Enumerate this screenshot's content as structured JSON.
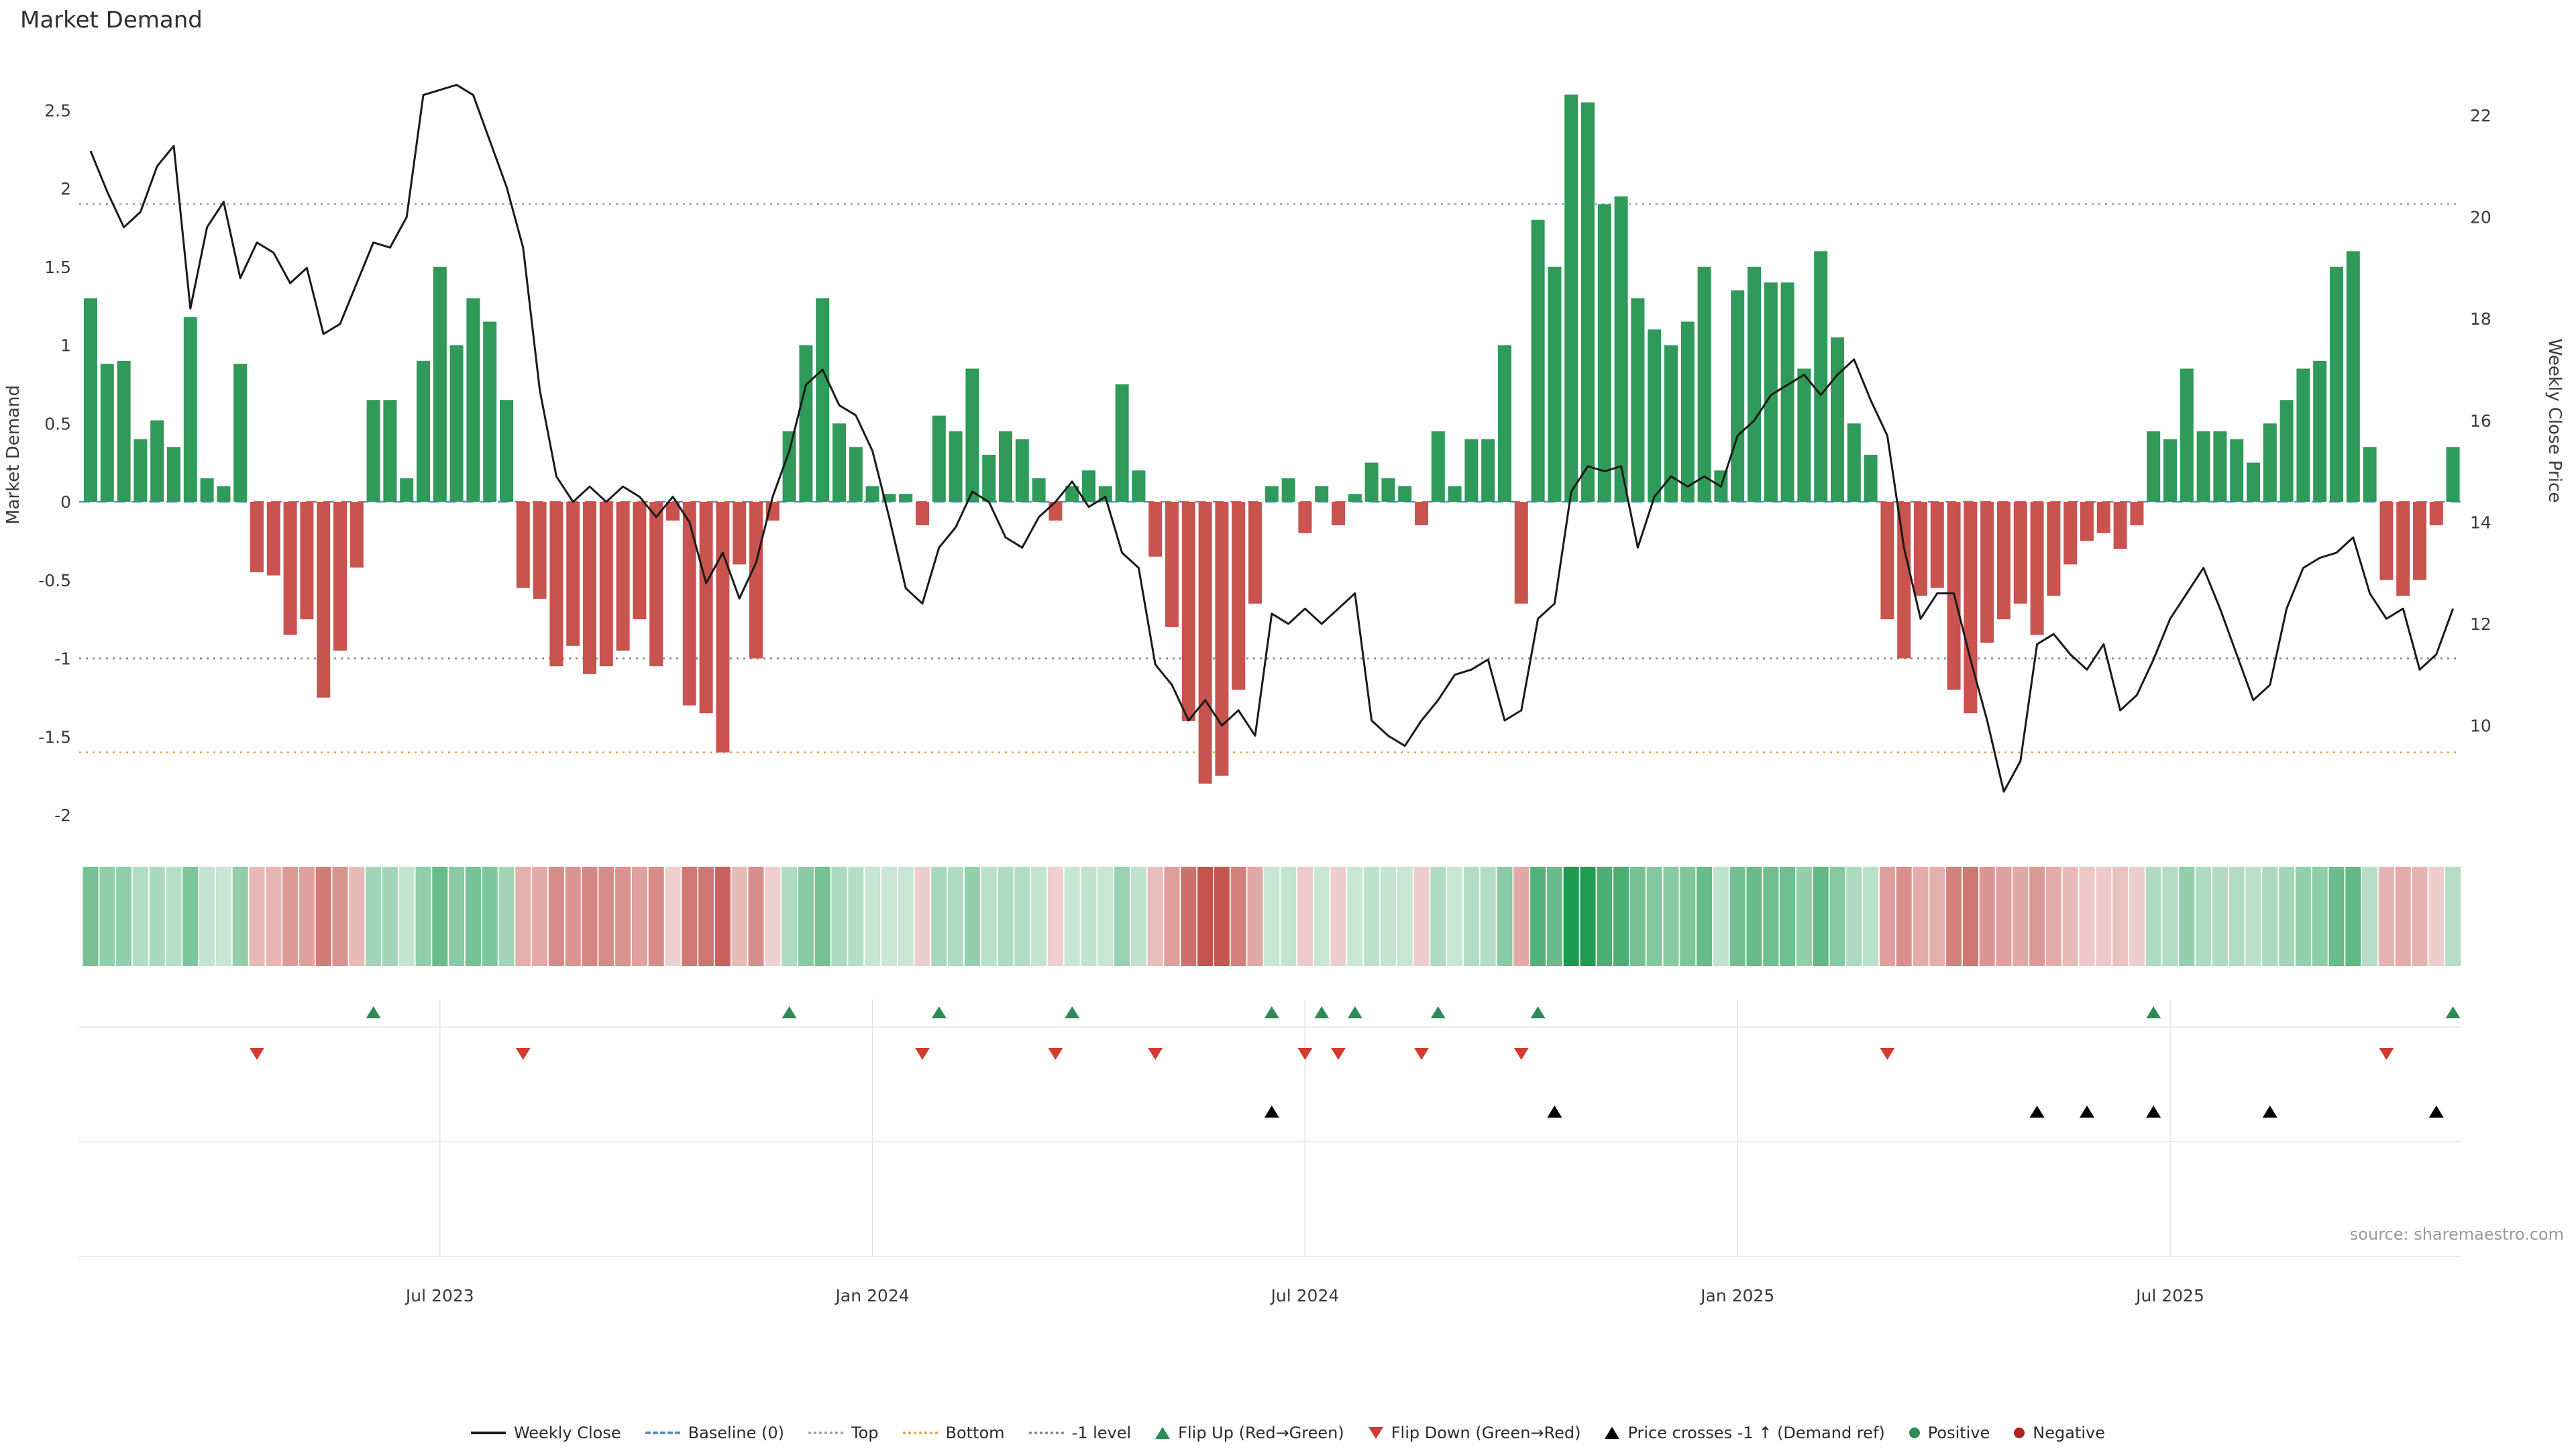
{
  "title": "Market Demand",
  "source": "source: sharemaestro.com",
  "axes": {
    "left_label": "Market Demand",
    "right_label": "Weekly Close Price",
    "left_ticks": [
      2.5,
      2,
      1.5,
      1,
      0.5,
      0,
      -0.5,
      -1,
      -1.5,
      -2
    ],
    "right_ticks": [
      22,
      20,
      18,
      16,
      14,
      12,
      10
    ]
  },
  "chart_data": {
    "type": "bar+line dual-axis with heatmap strip and event markers",
    "x_unit": "week",
    "n_points": 143,
    "x_tick_labels": [
      "Jul 2023",
      "Jan 2024",
      "Jul 2024",
      "Jan 2025",
      "Jul 2025"
    ],
    "x_tick_indices": [
      21,
      47,
      73,
      99,
      125
    ],
    "demand_ylim": [
      -2.1,
      2.75
    ],
    "price_ylim": [
      7.9,
      22.9
    ],
    "reference_levels": {
      "baseline": 0,
      "top": 1.9,
      "bottom": -1.6,
      "minus1": -1
    },
    "demand": [
      1.3,
      0.88,
      0.9,
      0.4,
      0.52,
      0.35,
      1.18,
      0.15,
      0.1,
      0.88,
      -0.45,
      -0.47,
      -0.85,
      -0.75,
      -1.25,
      -0.95,
      -0.42,
      0.65,
      0.65,
      0.15,
      0.9,
      1.5,
      1.0,
      1.3,
      1.15,
      0.65,
      -0.55,
      -0.62,
      -1.05,
      -0.92,
      -1.1,
      -1.05,
      -0.95,
      -0.75,
      -1.05,
      -0.12,
      -1.3,
      -1.35,
      -1.6,
      -0.4,
      -1.0,
      -0.12,
      0.45,
      1.0,
      1.3,
      0.5,
      0.35,
      0.1,
      0.05,
      0.05,
      -0.15,
      0.55,
      0.45,
      0.85,
      0.3,
      0.45,
      0.4,
      0.15,
      -0.12,
      0.1,
      0.2,
      0.1,
      0.75,
      0.2,
      -0.35,
      -0.8,
      -1.4,
      -1.8,
      -1.75,
      -1.2,
      -0.65,
      0.1,
      0.15,
      -0.2,
      0.1,
      -0.15,
      0.05,
      0.25,
      0.15,
      0.1,
      -0.15,
      0.45,
      0.1,
      0.4,
      0.4,
      1.0,
      -0.65,
      1.8,
      1.5,
      2.6,
      2.55,
      1.9,
      1.95,
      1.3,
      1.1,
      1.0,
      1.15,
      1.5,
      0.2,
      1.35,
      1.5,
      1.4,
      1.4,
      0.85,
      1.6,
      1.05,
      0.5,
      0.3,
      -0.75,
      -1.0,
      -0.6,
      -0.55,
      -1.2,
      -1.35,
      -0.9,
      -0.75,
      -0.65,
      -0.85,
      -0.6,
      -0.4,
      -0.25,
      -0.2,
      -0.3,
      -0.15,
      0.45,
      0.4,
      0.85,
      0.45,
      0.45,
      0.4,
      0.25,
      0.5,
      0.65,
      0.85,
      0.9,
      1.5,
      1.6,
      0.35,
      -0.5,
      -0.6,
      -0.5,
      -0.15,
      0.35
    ],
    "price": [
      21.3,
      20.5,
      19.8,
      20.1,
      21.0,
      21.4,
      18.2,
      19.8,
      20.3,
      18.8,
      19.5,
      19.3,
      18.7,
      19.0,
      17.7,
      17.9,
      18.7,
      19.5,
      19.4,
      20.0,
      22.4,
      22.5,
      22.6,
      22.4,
      21.5,
      20.6,
      19.4,
      16.6,
      14.9,
      14.4,
      14.7,
      14.4,
      14.7,
      14.5,
      14.1,
      14.5,
      14.0,
      12.8,
      13.4,
      12.5,
      13.2,
      14.5,
      15.4,
      16.7,
      17.0,
      16.3,
      16.1,
      15.4,
      14.1,
      12.7,
      12.4,
      13.5,
      13.9,
      14.6,
      14.4,
      13.7,
      13.5,
      14.1,
      14.4,
      14.8,
      14.3,
      14.5,
      13.4,
      13.1,
      11.2,
      10.8,
      10.1,
      10.5,
      10.0,
      10.3,
      9.8,
      12.2,
      12.0,
      12.3,
      12.0,
      12.3,
      12.6,
      10.1,
      9.8,
      9.6,
      10.1,
      10.5,
      11.0,
      11.1,
      11.3,
      10.1,
      10.3,
      12.1,
      12.4,
      14.6,
      15.1,
      15.0,
      15.1,
      13.5,
      14.5,
      14.9,
      14.7,
      14.9,
      14.7,
      15.7,
      16.0,
      16.5,
      16.7,
      16.9,
      16.5,
      16.9,
      17.2,
      16.4,
      15.7,
      13.5,
      12.1,
      12.6,
      12.6,
      11.3,
      10.1,
      8.7,
      9.3,
      11.6,
      11.8,
      11.4,
      11.1,
      11.6,
      10.3,
      10.6,
      11.3,
      12.1,
      12.6,
      13.1,
      12.3,
      11.4,
      10.5,
      10.8,
      12.3,
      13.1,
      13.3,
      13.4,
      13.7,
      12.6,
      12.1,
      12.3,
      11.1,
      11.4,
      12.3
    ],
    "flip_up_indices": [
      17,
      42,
      51,
      59,
      71,
      74,
      76,
      81,
      87,
      124,
      142
    ],
    "flip_down_indices": [
      10,
      26,
      50,
      58,
      64,
      73,
      75,
      80,
      86,
      108,
      138
    ],
    "price_cross_indices": [
      71,
      88,
      117,
      120,
      124,
      131,
      141
    ]
  },
  "legend": {
    "items": [
      {
        "id": "weekly-close",
        "label": "Weekly Close",
        "marker": "line",
        "color": "#1a1a1a"
      },
      {
        "id": "baseline",
        "label": "Baseline (0)",
        "marker": "dashed",
        "color": "#5a8fc8"
      },
      {
        "id": "top",
        "label": "Top",
        "marker": "dotted",
        "color": "#999999"
      },
      {
        "id": "bottom",
        "label": "Bottom",
        "marker": "dotted",
        "color": "#dca23f"
      },
      {
        "id": "minus1-level",
        "label": "-1 level",
        "marker": "dotted",
        "color": "#808080"
      },
      {
        "id": "flip-up",
        "label": "Flip Up (Red→Green)",
        "marker": "triangle-up",
        "color": "#2e8b57"
      },
      {
        "id": "flip-down",
        "label": "Flip Down (Green→Red)",
        "marker": "triangle-down",
        "color": "#d23b2f"
      },
      {
        "id": "price-cross",
        "label": "Price crosses -1 ↑ (Demand ref)",
        "marker": "triangle-up",
        "color": "#000000"
      },
      {
        "id": "positive",
        "label": "Positive",
        "marker": "dot",
        "color": "#2e8b57"
      },
      {
        "id": "negative",
        "label": "Negative",
        "marker": "dot",
        "color": "#b22222"
      }
    ]
  },
  "colors": {
    "positive": "#2f9a59",
    "negative": "#c9534e",
    "price_line": "#1a1a1a",
    "baseline": "#5a8fc8",
    "top_line": "#999999",
    "bottom_line": "#dca23f",
    "minus1_line": "#808080",
    "flip_up": "#2e8b57",
    "flip_down": "#d23b2f",
    "price_cross": "#000000",
    "heat_pos": "#1d9a50",
    "heat_neg": "#c4534e",
    "grid": "#e3e3e3",
    "tick_text": "#3a3a3a",
    "source_text": "#9a9a9a"
  }
}
